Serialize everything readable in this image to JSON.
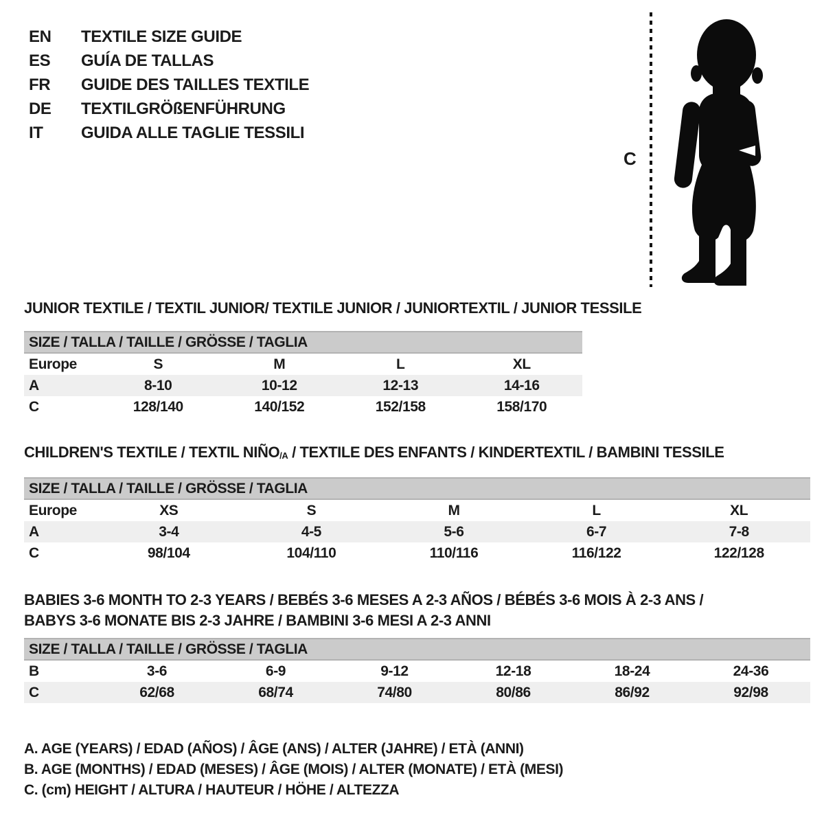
{
  "languages": [
    {
      "code": "EN",
      "label": "TEXTILE SIZE GUIDE"
    },
    {
      "code": "ES",
      "label": "GUÍA DE TALLAS"
    },
    {
      "code": "FR",
      "label": "GUIDE DES TAILLES TEXTILE"
    },
    {
      "code": "DE",
      "label": "TEXTILGRÖßENFÜHRUNG"
    },
    {
      "code": "IT",
      "label": "GUIDA ALLE TAGLIE TESSILI"
    }
  ],
  "figure": {
    "measure_label": "C",
    "image_name": "toddler-silhouette"
  },
  "sections": [
    {
      "title_lines": [
        [
          {
            "t": "JUNIOR TEXTILE / TEXTIL JUNIOR/ TEXTILE JUNIOR / JUNIORTEXTIL / JUNIOR TESSILE"
          }
        ]
      ],
      "size_header": "SIZE / TALLA / TAILLE / GRÖSSE / TAGLIA",
      "region_label": "Europe",
      "columns": [
        "S",
        "M",
        "L",
        "XL"
      ],
      "rows": [
        {
          "label": "A",
          "shaded": true,
          "values": [
            "8-10",
            "10-12",
            "12-13",
            "14-16"
          ]
        },
        {
          "label": "C",
          "shaded": false,
          "values": [
            "128/140",
            "140/152",
            "152/158",
            "158/170"
          ]
        }
      ]
    },
    {
      "title_lines": [
        [
          {
            "t": "CHILDREN'S TEXTILE / TEXTIL NIÑO"
          },
          {
            "t": "/A",
            "sub": true
          },
          {
            "t": " / TEXTILE DES ENFANTS / KINDERTEXTIL / BAMBINI TESSILE"
          }
        ]
      ],
      "size_header": "SIZE / TALLA / TAILLE / GRÖSSE / TAGLIA",
      "region_label": "Europe",
      "columns": [
        "XS",
        "S",
        "M",
        "L",
        "XL"
      ],
      "rows": [
        {
          "label": "A",
          "shaded": true,
          "values": [
            "3-4",
            "4-5",
            "5-6",
            "6-7",
            "7-8"
          ]
        },
        {
          "label": "C",
          "shaded": false,
          "values": [
            "98/104",
            "104/110",
            "110/116",
            "116/122",
            "122/128"
          ]
        }
      ]
    },
    {
      "title_lines": [
        [
          {
            "t": "BABIES 3-6 MONTH TO 2-3 YEARS / BEBÉS 3-6 MESES A 2-3 AÑOS / BÉBÉS 3-6 MOIS À 2-3 ANS /"
          }
        ],
        [
          {
            "t": "BABYS 3-6 MONATE BIS 2-3 JAHRE / BAMBINI 3-6 MESI A 2-3 ANNI"
          }
        ]
      ],
      "size_header": "SIZE / TALLA / TAILLE / GRÖSSE / TAGLIA",
      "rows": [
        {
          "label": "B",
          "shaded": false,
          "values": [
            "3-6",
            "6-9",
            "9-12",
            "12-18",
            "18-24",
            "24-36"
          ]
        },
        {
          "label": "C",
          "shaded": true,
          "values": [
            "62/68",
            "68/74",
            "74/80",
            "80/86",
            "86/92",
            "92/98"
          ]
        }
      ]
    }
  ],
  "legend": [
    "A. AGE (YEARS) / EDAD (AÑOS) / ÂGE (ANS) / ALTER (JAHRE) / ETÀ (ANNI)",
    "B. AGE (MONTHS) / EDAD (MESES) / ÂGE (MOIS) / ALTER (MONATE) / ETÀ (MESI)",
    "C. (cm) HEIGHT / ALTURA / HAUTEUR / HÖHE / ALTEZZA"
  ],
  "colors": {
    "bar_bg": "#cbcbcb",
    "bar_edge": "#b2b2b2",
    "row_alt": "#efefef",
    "text": "#1b1b1b"
  }
}
